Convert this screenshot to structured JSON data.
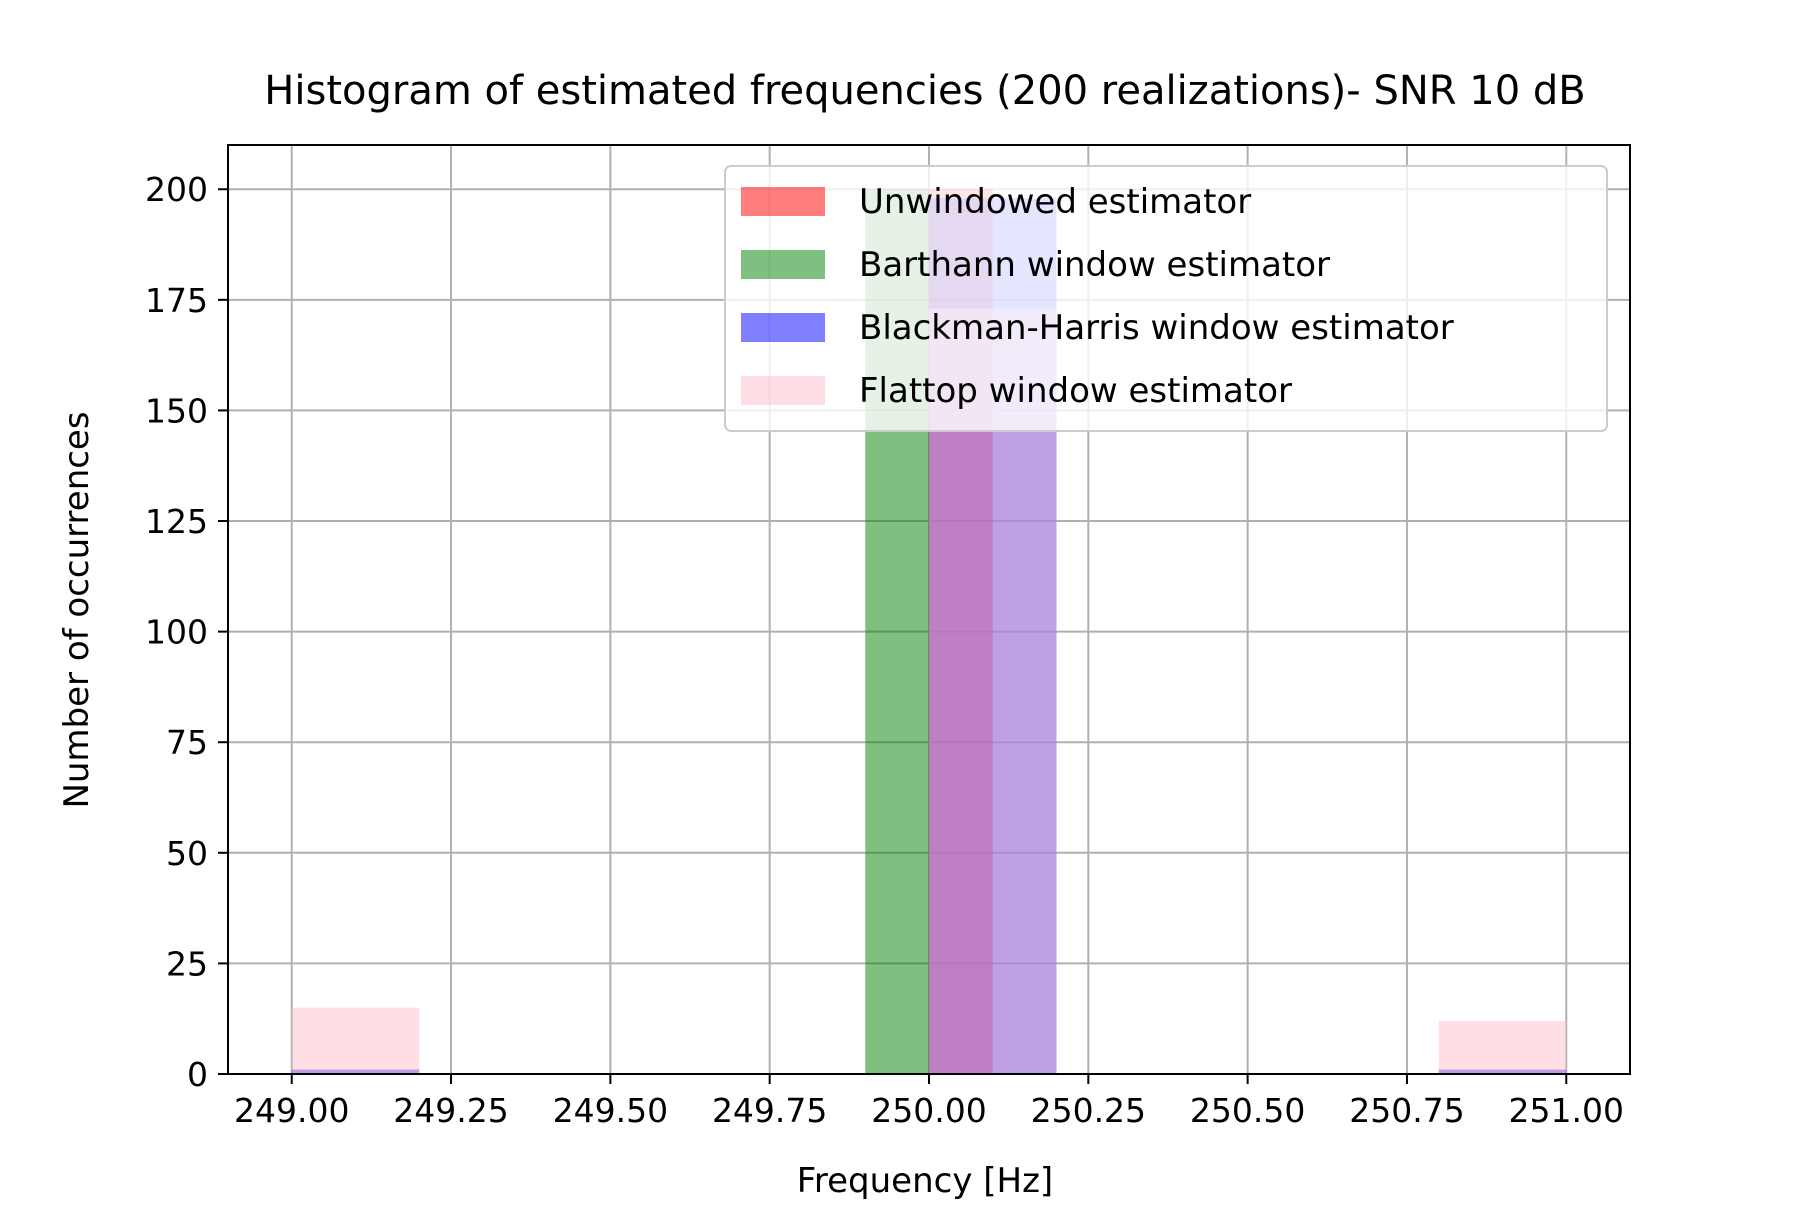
{
  "chart_data": {
    "type": "bar",
    "title": "Histogram of estimated frequencies (200 realizations)- SNR 10 dB",
    "xlabel": "Frequency [Hz]",
    "ylabel": "Number of occurrences",
    "xlim": [
      248.9,
      251.1
    ],
    "ylim": [
      0,
      210
    ],
    "xticks": [
      "249.00",
      "249.25",
      "249.50",
      "249.75",
      "250.00",
      "250.25",
      "250.50",
      "250.75",
      "251.00"
    ],
    "xtick_values": [
      249.0,
      249.25,
      249.5,
      249.75,
      250.0,
      250.25,
      250.5,
      250.75,
      251.0
    ],
    "yticks": [
      "0",
      "25",
      "50",
      "75",
      "100",
      "125",
      "150",
      "175",
      "200"
    ],
    "ytick_values": [
      0,
      25,
      50,
      75,
      100,
      125,
      150,
      175,
      200
    ],
    "grid": true,
    "legend_position": "top-right",
    "series": [
      {
        "name": "Unwindowed estimator",
        "color": "#ff0000",
        "alpha": 0.5,
        "bins": [
          {
            "x0": 250.0,
            "x1": 250.1,
            "count": 200
          }
        ]
      },
      {
        "name": "Barthann window estimator",
        "color": "#008000",
        "alpha": 0.5,
        "bins": [
          {
            "x0": 249.9,
            "x1": 250.0,
            "count": 200
          }
        ]
      },
      {
        "name": "Blackman-Harris window estimator",
        "color": "#0000ff",
        "alpha": 0.5,
        "bins": [
          {
            "x0": 249.0,
            "x1": 249.2,
            "count": 1
          },
          {
            "x0": 250.0,
            "x1": 250.2,
            "count": 198
          },
          {
            "x0": 250.8,
            "x1": 251.0,
            "count": 1
          }
        ]
      },
      {
        "name": "Flattop window estimator",
        "color": "#ffc0cb",
        "alpha": 0.5,
        "bins": [
          {
            "x0": 249.0,
            "x1": 249.2,
            "count": 15
          },
          {
            "x0": 250.0,
            "x1": 250.2,
            "count": 173
          },
          {
            "x0": 250.8,
            "x1": 251.0,
            "count": 12
          }
        ]
      }
    ]
  }
}
